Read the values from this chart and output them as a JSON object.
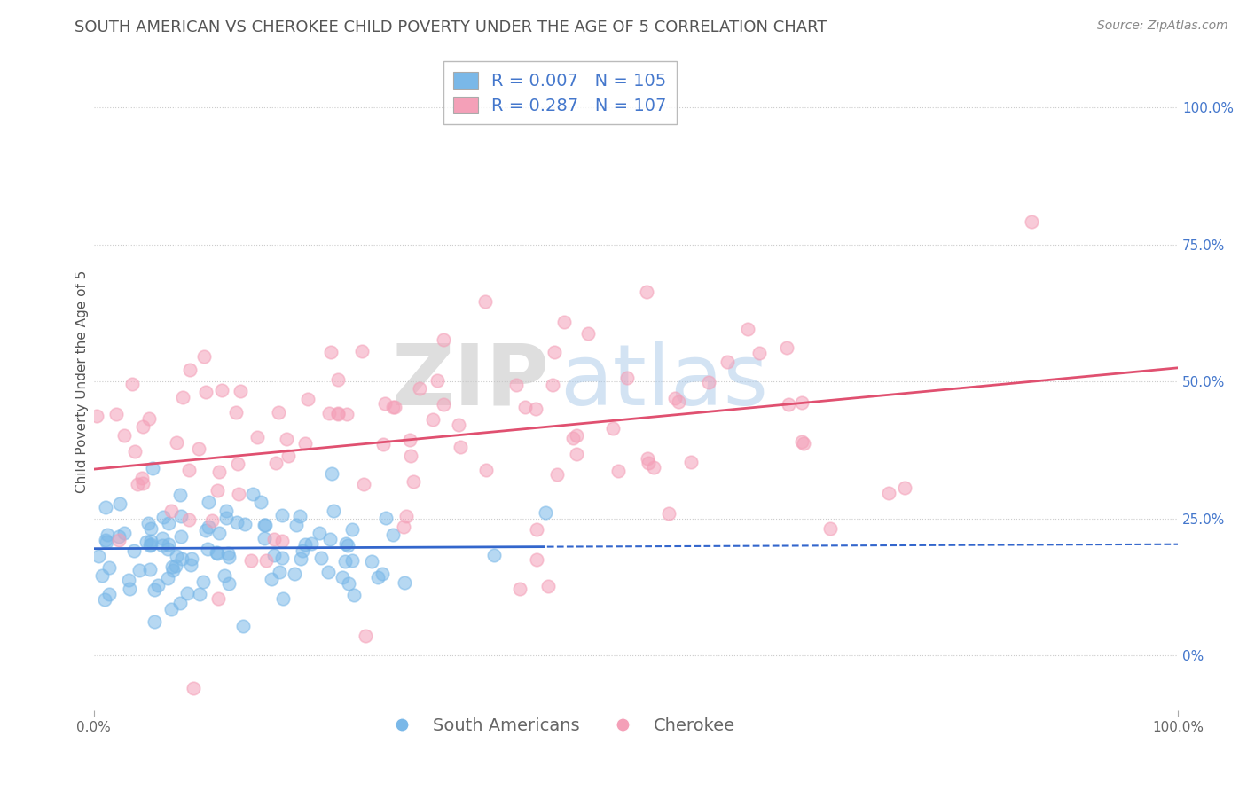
{
  "title": "SOUTH AMERICAN VS CHEROKEE CHILD POVERTY UNDER THE AGE OF 5 CORRELATION CHART",
  "source": "Source: ZipAtlas.com",
  "ylabel": "Child Poverty Under the Age of 5",
  "xlim": [
    0,
    1
  ],
  "ylim": [
    -0.1,
    1.1
  ],
  "y_ticks": [
    0,
    0.25,
    0.5,
    0.75,
    1.0
  ],
  "y_tick_labels": [
    "0%",
    "25.0%",
    "50.0%",
    "75.0%",
    "100.0%"
  ],
  "south_american_color": "#7ab8e8",
  "cherokee_color": "#f4a0b8",
  "south_american_R": 0.007,
  "south_american_N": 105,
  "cherokee_R": 0.287,
  "cherokee_N": 107,
  "south_american_line_color": "#3366cc",
  "cherokee_line_color": "#e05070",
  "right_axis_color": "#4477cc",
  "background_color": "#ffffff",
  "grid_color": "#cccccc",
  "title_fontsize": 13,
  "axis_label_fontsize": 11,
  "tick_fontsize": 11,
  "legend_fontsize": 14,
  "source_fontsize": 10,
  "sa_line_intercept": 0.195,
  "sa_line_slope": 0.008,
  "ch_line_intercept": 0.34,
  "ch_line_slope": 0.185
}
